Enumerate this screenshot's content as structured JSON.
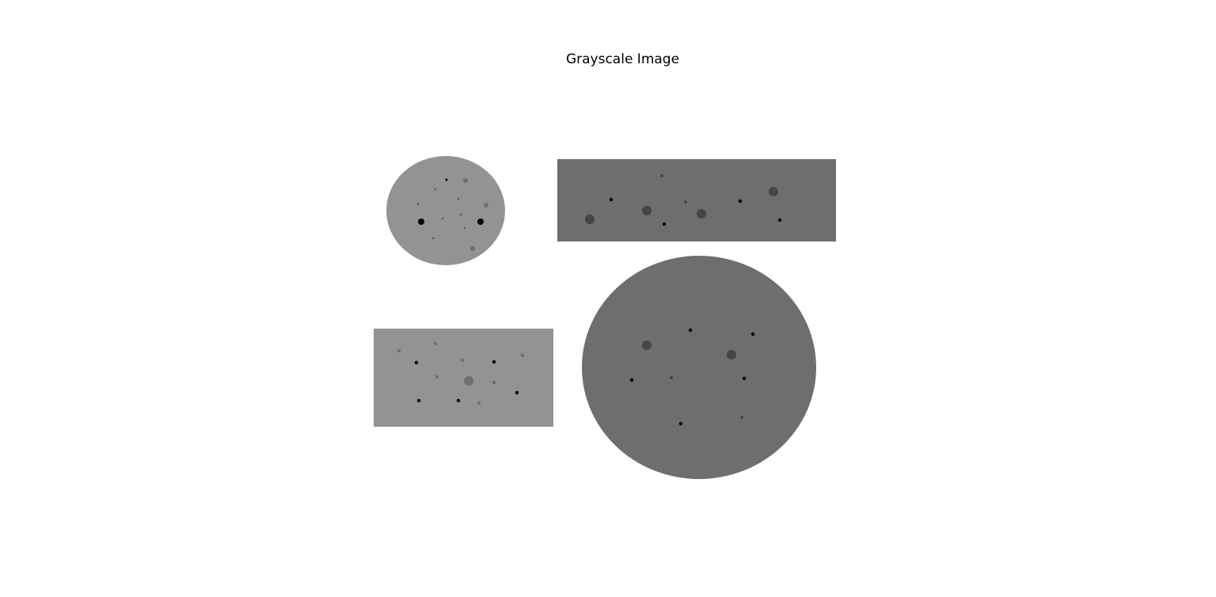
{
  "figure": {
    "title": "Grayscale Image"
  },
  "colors": {
    "background": "#ffffff",
    "light_gray_shape": "#939393",
    "dark_gray_shape": "#6e6e6e",
    "dark_spot": "#454545",
    "black_spot": "#000000"
  },
  "shapes": [
    {
      "name": "small-ellipse",
      "kind": "ellipse",
      "tone": "light"
    },
    {
      "name": "wide-rectangle",
      "kind": "rectangle",
      "tone": "dark"
    },
    {
      "name": "lower-rectangle",
      "kind": "rectangle",
      "tone": "light"
    },
    {
      "name": "large-ellipse",
      "kind": "ellipse",
      "tone": "dark"
    }
  ]
}
